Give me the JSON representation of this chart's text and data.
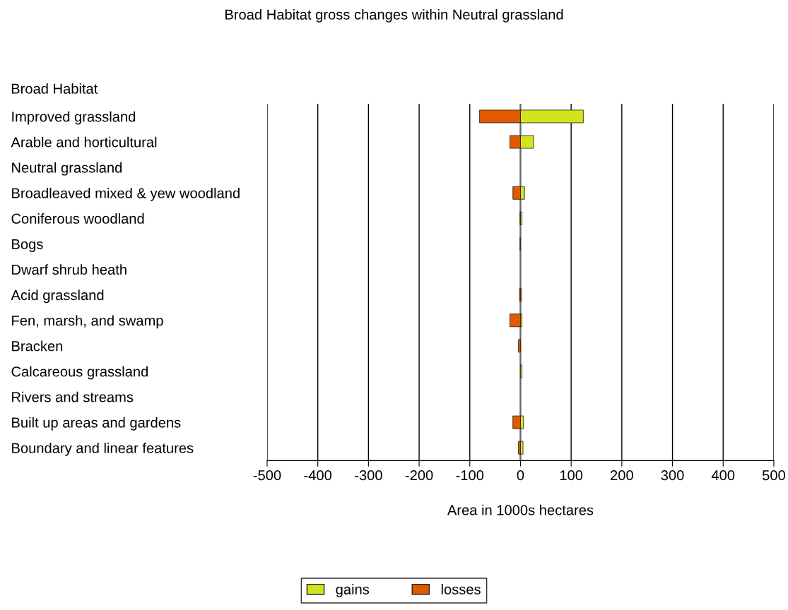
{
  "chart_data": {
    "type": "bar",
    "orientation": "horizontal",
    "title": "Broad Habitat gross changes within Neutral grassland",
    "xlabel": "Area in 1000s hectares",
    "ylabel": "Broad Habitat",
    "categories": [
      "Improved grassland",
      "Arable and horticultural",
      "Neutral grassland",
      "Broadleaved mixed & yew woodland",
      "Coniferous woodland",
      "Bogs",
      "Dwarf shrub heath",
      "Acid grassland",
      "Fen, marsh, and swamp",
      "Bracken",
      "Calcareous grassland",
      "Rivers and streams",
      "Built up areas and gardens",
      "Boundary and linear features"
    ],
    "series": [
      {
        "name": "gains",
        "color": "#d4e41c",
        "values": [
          124,
          26,
          null,
          8,
          3,
          null,
          null,
          2,
          3,
          null,
          3,
          null,
          6,
          5
        ]
      },
      {
        "name": "losses",
        "color": "#e05a00",
        "values": [
          -81,
          -21,
          null,
          -15,
          -1,
          -1,
          null,
          -2,
          -21,
          -4,
          null,
          null,
          -15,
          -4
        ]
      }
    ],
    "xlim": [
      -500,
      500
    ],
    "xticks": [
      -500,
      -400,
      -300,
      -200,
      -100,
      0,
      100,
      200,
      300,
      400,
      500
    ],
    "grid": "x",
    "legend": "bottom"
  }
}
